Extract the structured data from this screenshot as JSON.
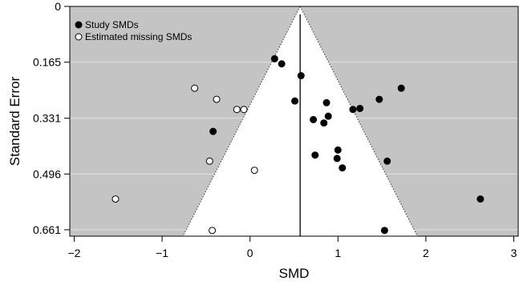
{
  "chart_data": {
    "type": "scatter",
    "subtype": "funnel-plot",
    "xlabel": "SMD",
    "ylabel": "Standard Error",
    "xlim": [
      -2.05,
      3.05
    ],
    "ylim": [
      0.68,
      0
    ],
    "y_inverted": true,
    "x_ticks": [
      -2,
      -1,
      0,
      1,
      2,
      3
    ],
    "x_tick_labels": [
      "−2",
      "−1",
      "0",
      "1",
      "2",
      "3"
    ],
    "y_ticks": [
      0,
      0.165,
      0.331,
      0.496,
      0.661
    ],
    "y_tick_labels": [
      "0",
      "0.165",
      "0.331",
      "0.496",
      "0.661"
    ],
    "grid": "horizontal",
    "pooled_estimate": 0.57,
    "funnel_z": 1.96,
    "colors": {
      "background": "#c4c4c4",
      "funnel": "#ffffff",
      "grid": "#e2e2e2",
      "center_line": "#000000",
      "study_fill": "#000000",
      "missing_fill": "#ffffff"
    },
    "legend": {
      "placement": "top-left",
      "entries": [
        {
          "label": "Study SMDs",
          "marker": "filled"
        },
        {
          "label": "Estimated missing SMDs",
          "marker": "open"
        }
      ]
    },
    "series": [
      {
        "name": "Study SMDs",
        "marker": "filled",
        "points": [
          {
            "x": 0.28,
            "y": 0.155
          },
          {
            "x": 0.36,
            "y": 0.17
          },
          {
            "x": 0.58,
            "y": 0.205
          },
          {
            "x": 0.51,
            "y": 0.28
          },
          {
            "x": 0.87,
            "y": 0.285
          },
          {
            "x": 0.72,
            "y": 0.335
          },
          {
            "x": 0.89,
            "y": 0.325
          },
          {
            "x": 0.84,
            "y": 0.345
          },
          {
            "x": 1.17,
            "y": 0.305
          },
          {
            "x": 1.25,
            "y": 0.302
          },
          {
            "x": 1.47,
            "y": 0.275
          },
          {
            "x": 1.72,
            "y": 0.242
          },
          {
            "x": -0.42,
            "y": 0.37
          },
          {
            "x": 1.0,
            "y": 0.425
          },
          {
            "x": 0.74,
            "y": 0.44
          },
          {
            "x": 0.99,
            "y": 0.45
          },
          {
            "x": 1.05,
            "y": 0.478
          },
          {
            "x": 1.56,
            "y": 0.458
          },
          {
            "x": 2.62,
            "y": 0.57
          },
          {
            "x": 1.53,
            "y": 0.663
          }
        ]
      },
      {
        "name": "Estimated missing SMDs",
        "marker": "open",
        "points": [
          {
            "x": -0.63,
            "y": 0.242
          },
          {
            "x": -0.38,
            "y": 0.275
          },
          {
            "x": -0.15,
            "y": 0.305
          },
          {
            "x": -0.07,
            "y": 0.305
          },
          {
            "x": -0.46,
            "y": 0.458
          },
          {
            "x": 0.05,
            "y": 0.485
          },
          {
            "x": -1.53,
            "y": 0.57
          },
          {
            "x": -0.43,
            "y": 0.663
          }
        ]
      }
    ]
  }
}
